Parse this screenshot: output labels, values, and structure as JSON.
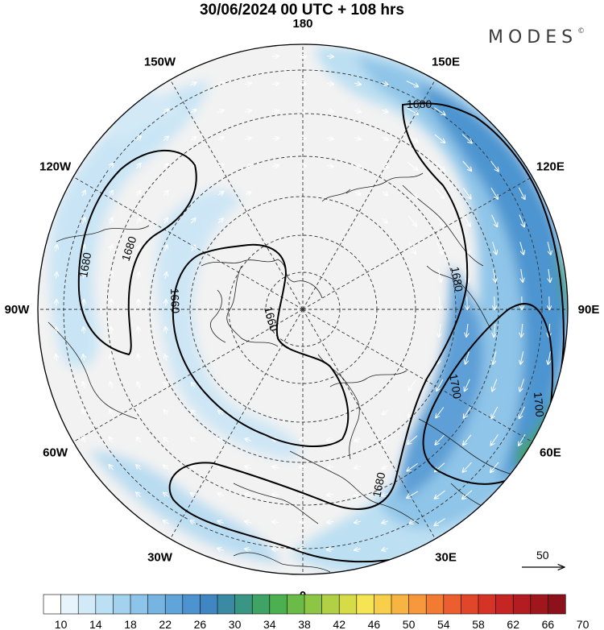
{
  "title": "30/06/2024  00 UTC  + 108 hrs",
  "logo": {
    "text": "MODES",
    "mark": "©"
  },
  "longitude_labels": [
    {
      "text": "180",
      "lon": 180
    },
    {
      "text": "150E",
      "lon": 150
    },
    {
      "text": "120E",
      "lon": 120
    },
    {
      "text": "90E",
      "lon": 90
    },
    {
      "text": "60E",
      "lon": 60
    },
    {
      "text": "30E",
      "lon": 30
    },
    {
      "text": "0",
      "lon": 0
    },
    {
      "text": "30W",
      "lon": -30
    },
    {
      "text": "60W",
      "lon": -60
    },
    {
      "text": "90W",
      "lon": -90
    },
    {
      "text": "120W",
      "lon": -120
    },
    {
      "text": "150W",
      "lon": -150
    }
  ],
  "contour_labels": [
    {
      "text": "1680",
      "contour": 1680
    },
    {
      "text": "1680",
      "contour": 1680
    },
    {
      "text": "1680",
      "contour": 1680
    },
    {
      "text": "1680",
      "contour": 1680
    },
    {
      "text": "1680",
      "contour": 1680
    },
    {
      "text": "1660",
      "contour": 1660
    },
    {
      "text": "1660",
      "contour": 1660
    },
    {
      "text": "1700",
      "contour": 1700
    },
    {
      "text": "1700",
      "contour": 1700
    }
  ],
  "vector_key": {
    "text": "50"
  },
  "colorbar": {
    "colors": [
      "#ffffff",
      "#e8f4fb",
      "#d2eaf7",
      "#bbdff3",
      "#a3d2ee",
      "#8dc4e9",
      "#76b5e2",
      "#60a5da",
      "#4c93cf",
      "#3f86c2",
      "#3a8aa3",
      "#3a9684",
      "#3ea365",
      "#4cb050",
      "#6bbb48",
      "#8dc545",
      "#b2d045",
      "#d6dc48",
      "#f5e552",
      "#f7cf4a",
      "#f8b443",
      "#f6983b",
      "#f27b34",
      "#ec5e2e",
      "#e2462a",
      "#d53326",
      "#c52623",
      "#b31c20",
      "#a0161d",
      "#8c111a"
    ],
    "tick_labels": [
      "10",
      "14",
      "18",
      "22",
      "26",
      "30",
      "34",
      "38",
      "42",
      "46",
      "50",
      "54",
      "58",
      "62",
      "66",
      "70"
    ]
  }
}
